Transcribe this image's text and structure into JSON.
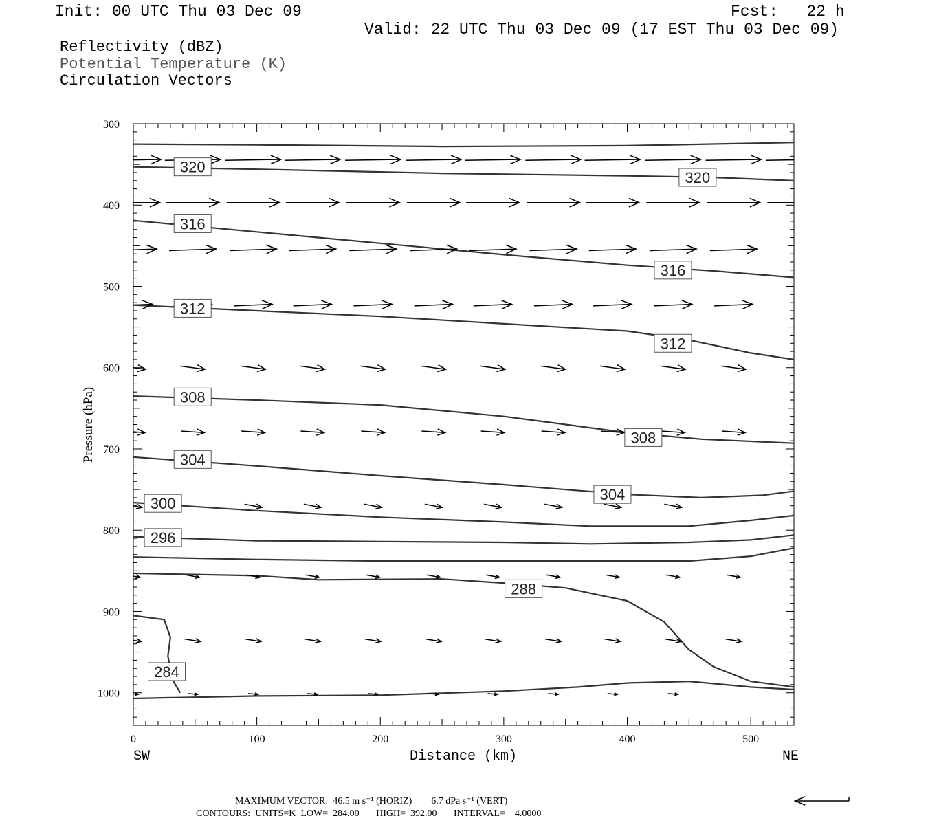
{
  "header": {
    "init": "Init: 00 UTC Thu 03 Dec 09",
    "fcst": "Fcst:   22 h",
    "valid": "Valid: 22 UTC Thu 03 Dec 09 (17 EST Thu 03 Dec 09)"
  },
  "fields": [
    {
      "label": "Reflectivity (dBZ)",
      "color": "#000000"
    },
    {
      "label": "Potential Temperature (K)",
      "color": "#555555"
    },
    {
      "label": "Circulation Vectors",
      "color": "#000000"
    }
  ],
  "footer": {
    "max_vector_line": "MAXIMUM VECTOR:  46.5 m s⁻¹ (HORIZ)        6.7 dPa s⁻¹ (VERT)",
    "contours_line": "CONTOURS:  UNITS=K  LOW=  284.00       HIGH=  392.00       INTERVAL=    4.0000"
  },
  "chart_data": {
    "type": "line",
    "xlabel": "Distance (km)",
    "ylabel": "Pressure (hPa)",
    "xlim": [
      0,
      535
    ],
    "ylim": [
      1040,
      300
    ],
    "x_ticks": [
      0,
      100,
      200,
      300,
      400,
      500
    ],
    "y_ticks": [
      300,
      400,
      500,
      600,
      700,
      800,
      900,
      1000
    ],
    "x_end_labels": {
      "left": "SW",
      "right": "NE"
    },
    "contour_color": "#333333",
    "contours": [
      {
        "value": 324,
        "labels": [],
        "points": [
          [
            0,
            325
          ],
          [
            100,
            326
          ],
          [
            250,
            328
          ],
          [
            400,
            327
          ],
          [
            535,
            323
          ]
        ]
      },
      {
        "value": 320,
        "labels": [
          [
            48,
            353
          ],
          [
            457,
            366
          ]
        ],
        "points": [
          [
            0,
            353
          ],
          [
            100,
            356
          ],
          [
            250,
            361
          ],
          [
            400,
            364
          ],
          [
            470,
            366
          ],
          [
            535,
            370
          ]
        ]
      },
      {
        "value": 316,
        "labels": [
          [
            48,
            423
          ],
          [
            437,
            480
          ]
        ],
        "points": [
          [
            0,
            419
          ],
          [
            100,
            433
          ],
          [
            200,
            447
          ],
          [
            300,
            461
          ],
          [
            400,
            474
          ],
          [
            470,
            481
          ],
          [
            535,
            489
          ]
        ]
      },
      {
        "value": 312,
        "labels": [
          [
            48,
            527
          ],
          [
            437,
            570
          ]
        ],
        "points": [
          [
            0,
            523
          ],
          [
            100,
            530
          ],
          [
            200,
            537
          ],
          [
            300,
            546
          ],
          [
            400,
            555
          ],
          [
            450,
            566
          ],
          [
            500,
            582
          ],
          [
            535,
            590
          ]
        ]
      },
      {
        "value": 308,
        "labels": [
          [
            48,
            636
          ],
          [
            413,
            686
          ]
        ],
        "points": [
          [
            0,
            635
          ],
          [
            100,
            640
          ],
          [
            200,
            646
          ],
          [
            300,
            660
          ],
          [
            400,
            680
          ],
          [
            460,
            688
          ],
          [
            535,
            693
          ]
        ]
      },
      {
        "value": 304,
        "labels": [
          [
            48,
            713
          ],
          [
            388,
            756
          ]
        ],
        "points": [
          [
            0,
            710
          ],
          [
            100,
            721
          ],
          [
            200,
            733
          ],
          [
            300,
            744
          ],
          [
            400,
            756
          ],
          [
            460,
            760
          ],
          [
            510,
            757
          ],
          [
            535,
            752
          ]
        ]
      },
      {
        "value": 300,
        "labels": [
          [
            24,
            767
          ]
        ],
        "points": [
          [
            0,
            766
          ],
          [
            100,
            776
          ],
          [
            200,
            784
          ],
          [
            300,
            790
          ],
          [
            370,
            795
          ],
          [
            450,
            795
          ],
          [
            500,
            788
          ],
          [
            535,
            782
          ]
        ]
      },
      {
        "value": 296,
        "labels": [
          [
            24,
            809
          ]
        ],
        "points": [
          [
            0,
            808
          ],
          [
            100,
            813
          ],
          [
            200,
            814
          ],
          [
            300,
            815
          ],
          [
            370,
            817
          ],
          [
            450,
            815
          ],
          [
            500,
            812
          ],
          [
            535,
            806
          ]
        ]
      },
      {
        "value": 292,
        "labels": [],
        "points": [
          [
            0,
            833
          ],
          [
            100,
            836
          ],
          [
            200,
            838
          ],
          [
            300,
            838
          ],
          [
            450,
            838
          ],
          [
            500,
            832
          ],
          [
            535,
            822
          ]
        ]
      },
      {
        "value": 288,
        "labels": [
          [
            316,
            872
          ]
        ],
        "points": [
          [
            0,
            853
          ],
          [
            100,
            856
          ],
          [
            150,
            861
          ],
          [
            250,
            860
          ],
          [
            300,
            865
          ],
          [
            350,
            871
          ],
          [
            400,
            887
          ],
          [
            430,
            913
          ],
          [
            450,
            947
          ],
          [
            470,
            968
          ],
          [
            500,
            986
          ],
          [
            535,
            993
          ]
        ]
      },
      {
        "value": 284,
        "labels": [
          [
            27,
            974
          ]
        ],
        "points": [
          [
            0,
            905
          ],
          [
            25,
            910
          ],
          [
            30,
            932
          ],
          [
            28,
            955
          ],
          [
            32,
            985
          ],
          [
            38,
            1000
          ]
        ]
      },
      {
        "value": 284,
        "labels": [],
        "points": [
          [
            0,
            1007
          ],
          [
            100,
            1004
          ],
          [
            200,
            1003
          ],
          [
            300,
            998
          ],
          [
            360,
            993
          ],
          [
            400,
            988
          ],
          [
            450,
            986
          ],
          [
            500,
            993
          ],
          [
            535,
            996
          ]
        ]
      }
    ],
    "vector_rows": [
      {
        "p": 345,
        "xs": [
          0,
          48,
          97,
          145,
          194,
          243,
          291,
          340,
          388,
          437,
          486,
          535
        ],
        "dx": 45,
        "dp": -1
      },
      {
        "p": 397,
        "xs": [
          0,
          48,
          97,
          145,
          194,
          243,
          291,
          340,
          388,
          437,
          486,
          535
        ],
        "dx": 43,
        "dp": 0
      },
      {
        "p": 456,
        "xs": [
          0,
          48,
          97,
          145,
          194,
          243,
          291,
          340,
          388,
          437,
          486
        ],
        "dx": 38,
        "dp": -2
      },
      {
        "p": 524,
        "xs": [
          0,
          48,
          97,
          145,
          194,
          243,
          291,
          340,
          388,
          437,
          486
        ],
        "dx": 31,
        "dp": -2
      },
      {
        "p": 598,
        "xs": [
          0,
          48,
          97,
          145,
          194,
          243,
          291,
          340,
          388,
          437,
          486
        ],
        "dx": 20,
        "dp": 4
      },
      {
        "p": 678,
        "xs": [
          0,
          48,
          97,
          145,
          194,
          243,
          291,
          340,
          388,
          437,
          486
        ],
        "dx": 19,
        "dp": 2
      },
      {
        "p": 768,
        "xs": [
          0,
          97,
          145,
          194,
          243,
          291,
          340,
          388,
          437
        ],
        "dx": 14,
        "dp": 4
      },
      {
        "p": 855,
        "xs": [
          0,
          48,
          97,
          145,
          194,
          243,
          291,
          340,
          388,
          437,
          486
        ],
        "dx": 11,
        "dp": 3
      },
      {
        "p": 934,
        "xs": [
          0,
          48,
          97,
          145,
          194,
          243,
          291,
          340,
          388,
          437,
          486
        ],
        "dx": 13,
        "dp": 3
      },
      {
        "p": 1001,
        "xs": [
          0,
          48,
          97,
          145,
          194,
          243,
          291,
          340,
          388,
          437
        ],
        "dx": 8,
        "dp": 1
      }
    ],
    "reference_vector_km": 46
  }
}
